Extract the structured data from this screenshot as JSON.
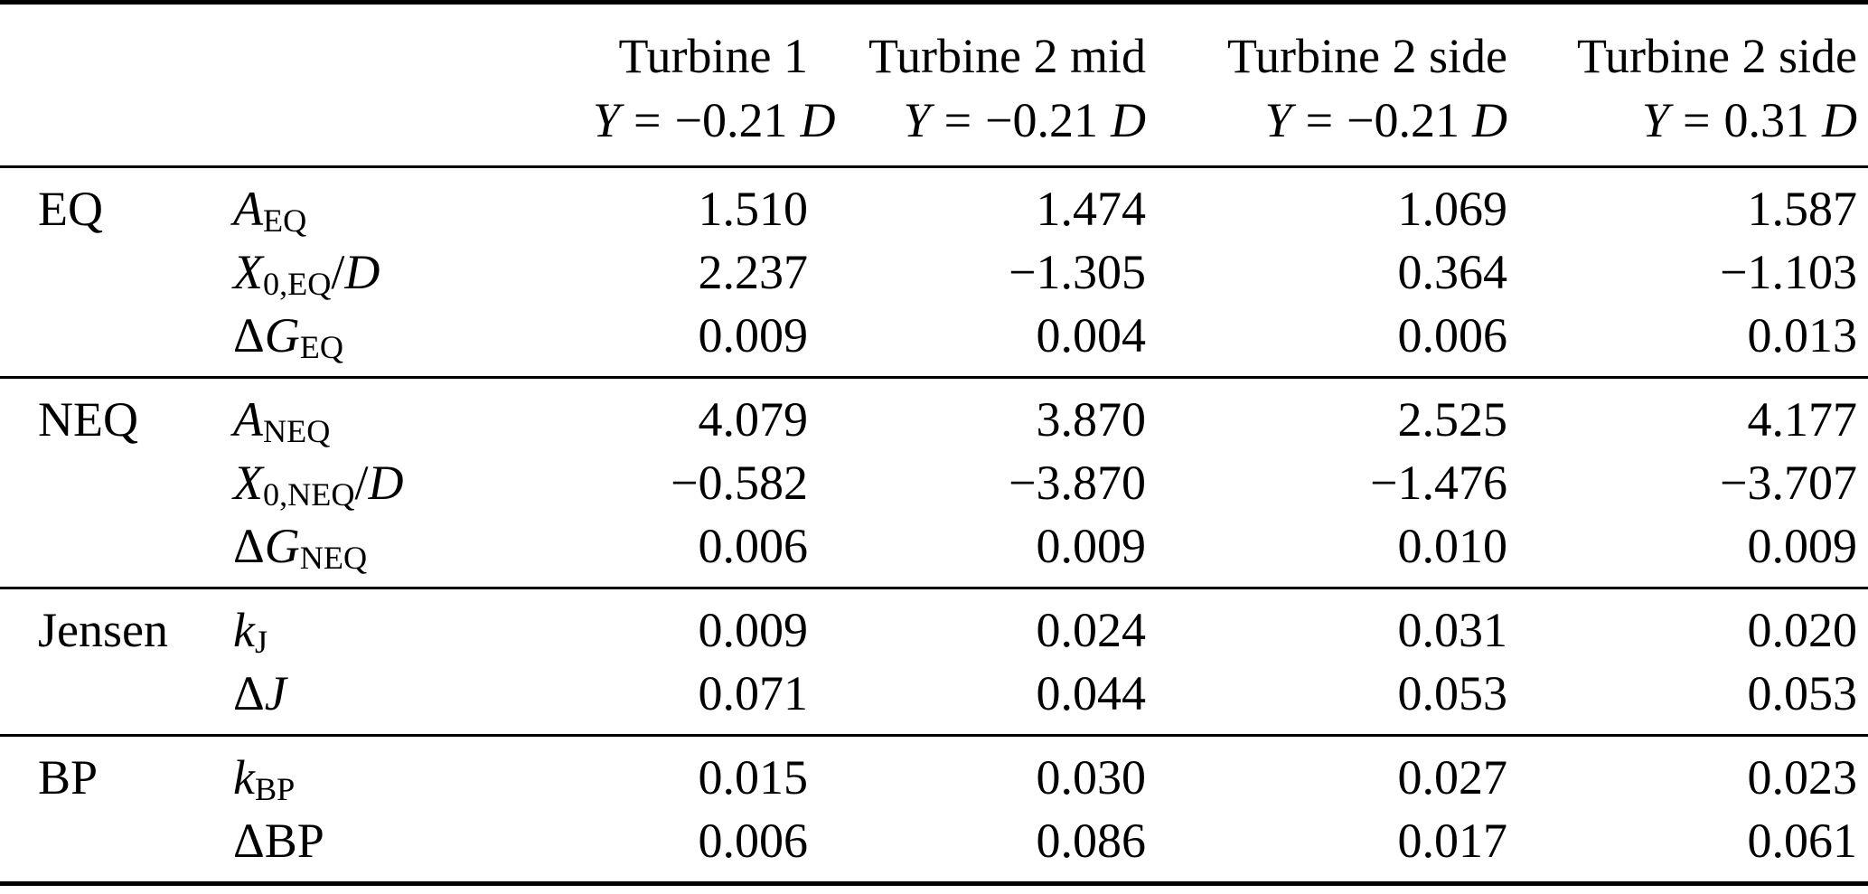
{
  "table": {
    "columns": [
      {
        "title": "Turbine 1",
        "y_symbol": "Y",
        "equals": "=",
        "value": "−0.21",
        "d_symbol": "D"
      },
      {
        "title": "Turbine 2 mid",
        "y_symbol": "Y",
        "equals": "=",
        "value": "−0.21",
        "d_symbol": "D"
      },
      {
        "title": "Turbine 2 side",
        "y_symbol": "Y",
        "equals": "=",
        "value": "−0.21",
        "d_symbol": "D"
      },
      {
        "title": "Turbine 2 side",
        "y_symbol": "Y",
        "equals": "=",
        "value": "0.31",
        "d_symbol": "D"
      }
    ],
    "sections": [
      {
        "group": "EQ",
        "rows": [
          {
            "label": {
              "main": "A",
              "sub": "EQ"
            },
            "values": [
              "1.510",
              "1.474",
              "1.069",
              "1.587"
            ]
          },
          {
            "label": {
              "main": "X",
              "sub": "0,EQ",
              "slash": "/",
              "post": "D"
            },
            "values": [
              "2.237",
              "−1.305",
              "0.364",
              "−1.103"
            ]
          },
          {
            "label": {
              "pre": "Δ",
              "main": "G",
              "sub": "EQ"
            },
            "values": [
              "0.009",
              "0.004",
              "0.006",
              "0.013"
            ]
          }
        ]
      },
      {
        "group": "NEQ",
        "rows": [
          {
            "label": {
              "main": "A",
              "sub": "NEQ"
            },
            "values": [
              "4.079",
              "3.870",
              "2.525",
              "4.177"
            ]
          },
          {
            "label": {
              "main": "X",
              "sub": "0,NEQ",
              "slash": "/",
              "post": "D"
            },
            "values": [
              "−0.582",
              "−3.870",
              "−1.476",
              "−3.707"
            ]
          },
          {
            "label": {
              "pre": "Δ",
              "main": "G",
              "sub": "NEQ"
            },
            "values": [
              "0.006",
              "0.009",
              "0.010",
              "0.009"
            ]
          }
        ]
      },
      {
        "group": "Jensen",
        "rows": [
          {
            "label": {
              "main": "k",
              "sub": "J"
            },
            "values": [
              "0.009",
              "0.024",
              "0.031",
              "0.020"
            ]
          },
          {
            "label": {
              "pre": "Δ",
              "main": "J"
            },
            "values": [
              "0.071",
              "0.044",
              "0.053",
              "0.053"
            ]
          }
        ]
      },
      {
        "group": "BP",
        "rows": [
          {
            "label": {
              "main": "k",
              "sub": "BP"
            },
            "values": [
              "0.015",
              "0.030",
              "0.027",
              "0.023"
            ]
          },
          {
            "label": {
              "pre": "Δ",
              "roman": "BP"
            },
            "values": [
              "0.006",
              "0.086",
              "0.017",
              "0.061"
            ]
          }
        ]
      }
    ]
  }
}
